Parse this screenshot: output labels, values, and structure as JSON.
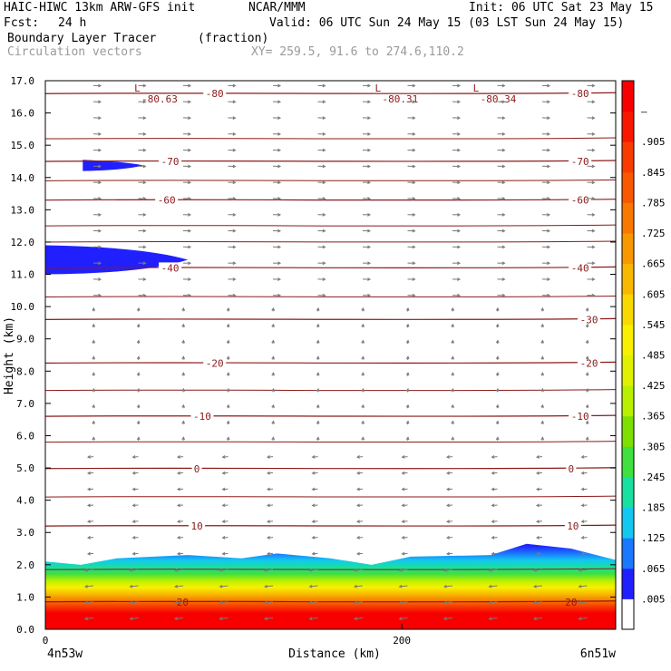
{
  "header": {
    "model": "HAIC-HIWC 13km ARW-GFS init",
    "org": "NCAR/MMM",
    "init": "Init: 06 UTC Sat 23 May 15",
    "fcst_label": "Fcst:",
    "fcst_value": "24 h",
    "valid": "Valid: 06 UTC Sun 24 May 15 (03 LST Sun 24 May 15)",
    "field": "Boundary Layer Tracer",
    "units": "(fraction)",
    "field2": "Circulation vectors",
    "xy": "XY= 259.5, 91.6 to 274.6,110.2"
  },
  "colors": {
    "contour": "#8b1a1a",
    "vector": "#7a7a7a",
    "tracer_ramp": [
      "#ffffff",
      "#2020ff",
      "#1a78ff",
      "#13c8f0",
      "#17e0a0",
      "#3fe03f",
      "#b8f000",
      "#f8f000",
      "#f8b800",
      "#f87800",
      "#f83c00",
      "#f80000"
    ]
  },
  "chart_data": {
    "type": "heatmap",
    "title": "Boundary Layer Tracer (fraction)",
    "xlabel": "Distance (km)",
    "ylabel": "Height (km)",
    "x_end_labels": [
      "4n53w",
      "6n51w"
    ],
    "x_ticks": [
      "0",
      "200"
    ],
    "xlim": [
      0,
      320
    ],
    "ylim": [
      0,
      17
    ],
    "y_ticks": [
      "0.0",
      "1.0",
      "2.0",
      "3.0",
      "4.0",
      "5.0",
      "6.0",
      "7.0",
      "8.0",
      "9.0",
      "10.0",
      "11.0",
      "12.0",
      "13.0",
      "14.0",
      "15.0",
      "16.0",
      "17.0"
    ],
    "colorbar_labels": [
      ".005",
      ".065",
      ".125",
      ".185",
      ".245",
      ".305",
      ".365",
      ".425",
      ".485",
      ".545",
      ".605",
      ".665",
      ".725",
      ".785",
      ".845",
      ".905",
      "–"
    ],
    "temperature_contours": [
      {
        "label": "-80",
        "height": 16.6,
        "label_x": [
          95,
          300
        ]
      },
      {
        "label": "-70",
        "height": 14.5,
        "label_x": [
          70,
          300
        ]
      },
      {
        "label": "-60",
        "height": 13.3,
        "label_x": [
          68,
          300
        ]
      },
      {
        "label": "-40",
        "height": 11.2,
        "label_x": [
          70,
          300
        ]
      },
      {
        "label": "-30",
        "height": 9.6,
        "label_x": [
          305
        ]
      },
      {
        "label": "-20",
        "height": 8.25,
        "label_x": [
          95,
          305
        ]
      },
      {
        "label": "-10",
        "height": 6.6,
        "label_x": [
          88,
          300
        ]
      },
      {
        "label": "0",
        "height": 4.98,
        "label_x": [
          85,
          295
        ]
      },
      {
        "label": "10",
        "height": 3.2,
        "label_x": [
          85,
          296
        ]
      },
      {
        "label": "20",
        "height": 0.85,
        "label_x": [
          77,
          295
        ]
      }
    ],
    "extra_isotherm_heights": [
      15.2,
      13.9,
      12.5,
      12.0,
      10.3,
      7.4,
      5.8,
      4.1,
      1.85
    ],
    "minima": [
      {
        "label": "-80.63",
        "x": 55,
        "height": 16.6
      },
      {
        "label": "-80.31",
        "x": 190,
        "height": 16.6
      },
      {
        "label": "-80.34",
        "x": 245,
        "height": 16.6
      }
    ],
    "tracer_patches": [
      {
        "x": [
          0,
          80
        ],
        "height": [
          11.0,
          11.9
        ],
        "value": 0.06
      },
      {
        "x": [
          21,
          55
        ],
        "height": [
          14.2,
          14.55
        ],
        "value": 0.06
      }
    ],
    "boundary_layer_top_km": [
      {
        "x": 0,
        "h": 2.1
      },
      {
        "x": 20,
        "h": 2.0
      },
      {
        "x": 40,
        "h": 2.2
      },
      {
        "x": 80,
        "h": 2.3
      },
      {
        "x": 110,
        "h": 2.2
      },
      {
        "x": 130,
        "h": 2.35
      },
      {
        "x": 160,
        "h": 2.2
      },
      {
        "x": 183,
        "h": 2.0
      },
      {
        "x": 205,
        "h": 2.25
      },
      {
        "x": 250,
        "h": 2.3
      },
      {
        "x": 270,
        "h": 2.65
      },
      {
        "x": 295,
        "h": 2.5
      },
      {
        "x": 320,
        "h": 2.15
      }
    ]
  }
}
